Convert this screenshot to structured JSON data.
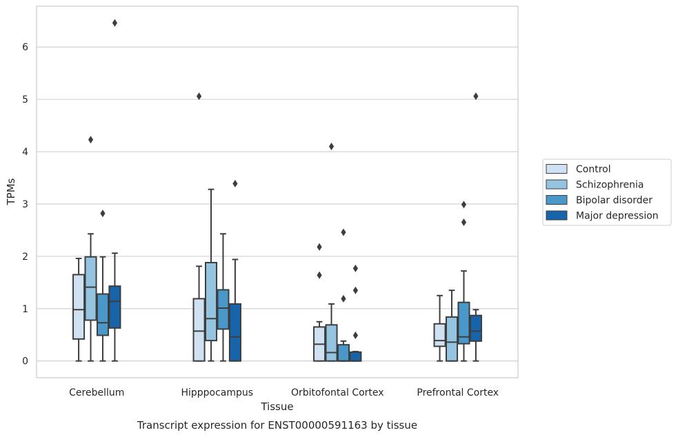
{
  "chart_data": {
    "type": "box",
    "title": "",
    "caption": "Transcript expression for ENST00000591163 by tissue",
    "xlabel": "Tissue",
    "ylabel": "TPMs",
    "ylim": [
      -0.32,
      6.78
    ],
    "yticks": [
      0,
      1,
      2,
      3,
      4,
      5,
      6
    ],
    "grid": "horizontal",
    "legend_position": "right",
    "categories": [
      "Cerebellum",
      "Hipppocampus",
      "Orbitofontal Cortex",
      "Prefrontal Cortex"
    ],
    "series": [
      {
        "name": "Control",
        "color": "#d0e1f2",
        "boxes": [
          {
            "whislo": 0.0,
            "q1": 0.42,
            "med": 0.98,
            "q3": 1.65,
            "whishi": 1.96,
            "fliers": []
          },
          {
            "whislo": 0.0,
            "q1": 0.0,
            "med": 0.57,
            "q3": 1.19,
            "whishi": 1.81,
            "fliers": [
              5.06
            ]
          },
          {
            "whislo": 0.0,
            "q1": 0.0,
            "med": 0.32,
            "q3": 0.65,
            "whishi": 0.75,
            "fliers": [
              1.64,
              2.18
            ]
          },
          {
            "whislo": 0.0,
            "q1": 0.28,
            "med": 0.39,
            "q3": 0.71,
            "whishi": 1.25,
            "fliers": []
          }
        ]
      },
      {
        "name": "Schizophrenia",
        "color": "#94c4df",
        "boxes": [
          {
            "whislo": 0.0,
            "q1": 0.78,
            "med": 1.41,
            "q3": 1.99,
            "whishi": 2.43,
            "fliers": [
              4.23
            ]
          },
          {
            "whislo": 0.0,
            "q1": 0.39,
            "med": 0.81,
            "q3": 1.88,
            "whishi": 3.28,
            "fliers": []
          },
          {
            "whislo": 0.0,
            "q1": 0.0,
            "med": 0.16,
            "q3": 0.69,
            "whishi": 1.09,
            "fliers": [
              4.1
            ]
          },
          {
            "whislo": 0.0,
            "q1": 0.0,
            "med": 0.36,
            "q3": 0.84,
            "whishi": 1.35,
            "fliers": []
          }
        ]
      },
      {
        "name": "Bipolar disorder",
        "color": "#4a98c9",
        "boxes": [
          {
            "whislo": 0.0,
            "q1": 0.49,
            "med": 0.73,
            "q3": 1.28,
            "whishi": 1.99,
            "fliers": [
              2.82
            ]
          },
          {
            "whislo": 0.0,
            "q1": 0.61,
            "med": 1.01,
            "q3": 1.36,
            "whishi": 2.43,
            "fliers": []
          },
          {
            "whislo": 0.0,
            "q1": 0.0,
            "med": 0.0,
            "q3": 0.31,
            "whishi": 0.38,
            "fliers": [
              1.19,
              2.46
            ]
          },
          {
            "whislo": 0.0,
            "q1": 0.33,
            "med": 0.46,
            "q3": 1.12,
            "whishi": 1.72,
            "fliers": [
              2.65,
              2.99
            ]
          }
        ]
      },
      {
        "name": "Major depression",
        "color": "#1764ab",
        "boxes": [
          {
            "whislo": 0.0,
            "q1": 0.63,
            "med": 1.14,
            "q3": 1.43,
            "whishi": 2.06,
            "fliers": [
              6.46
            ]
          },
          {
            "whislo": 0.0,
            "q1": 0.0,
            "med": 0.46,
            "q3": 1.09,
            "whishi": 1.94,
            "fliers": [
              3.39
            ]
          },
          {
            "whislo": 0.0,
            "q1": 0.0,
            "med": 0.0,
            "q3": 0.17,
            "whishi": 0.18,
            "fliers": [
              0.49,
              1.35,
              1.77
            ]
          },
          {
            "whislo": 0.0,
            "q1": 0.38,
            "med": 0.57,
            "q3": 0.87,
            "whishi": 0.98,
            "fliers": [
              5.06
            ]
          }
        ]
      }
    ]
  }
}
